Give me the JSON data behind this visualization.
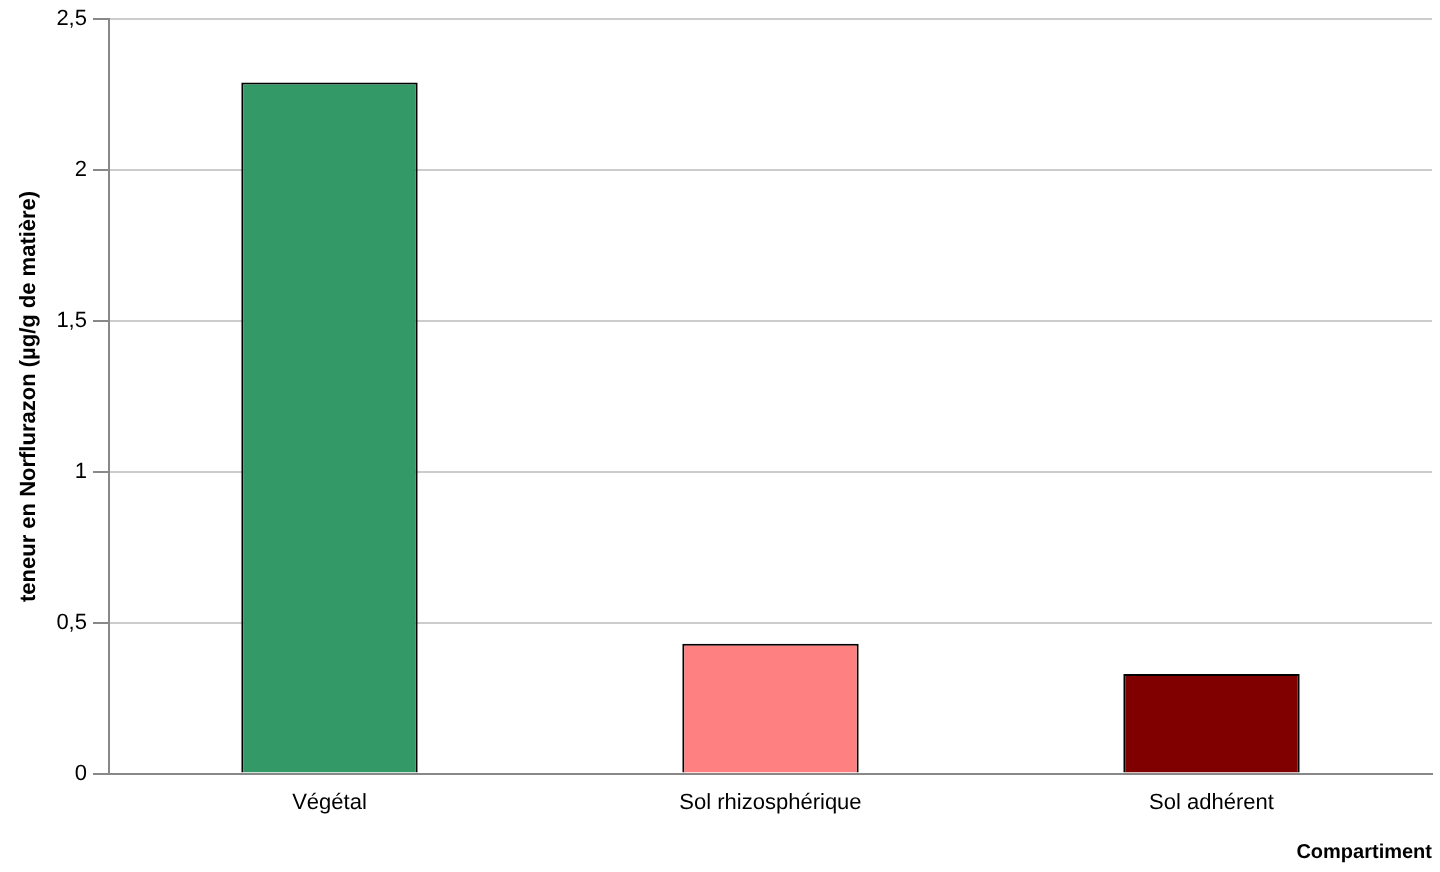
{
  "chart_data": {
    "type": "bar",
    "ylabel": "teneur en Norflurazon (µg/g de matière)",
    "xlabel": "Compartiment",
    "categories": [
      "Végétal",
      "Sol rhizosphérique",
      "Sol adhérent"
    ],
    "values": [
      2.29,
      0.43,
      0.33
    ],
    "colors": [
      "#339966",
      "#ff8080",
      "#800000"
    ],
    "ylim": [
      0,
      2.5
    ],
    "yticks": [
      0,
      {
        "value": 0.5,
        "label": "0,5"
      },
      1,
      {
        "value": 1.5,
        "label": "1,5"
      },
      2,
      {
        "value": 2.5,
        "label": "2,5"
      }
    ],
    "grid": "y",
    "legend": false
  }
}
